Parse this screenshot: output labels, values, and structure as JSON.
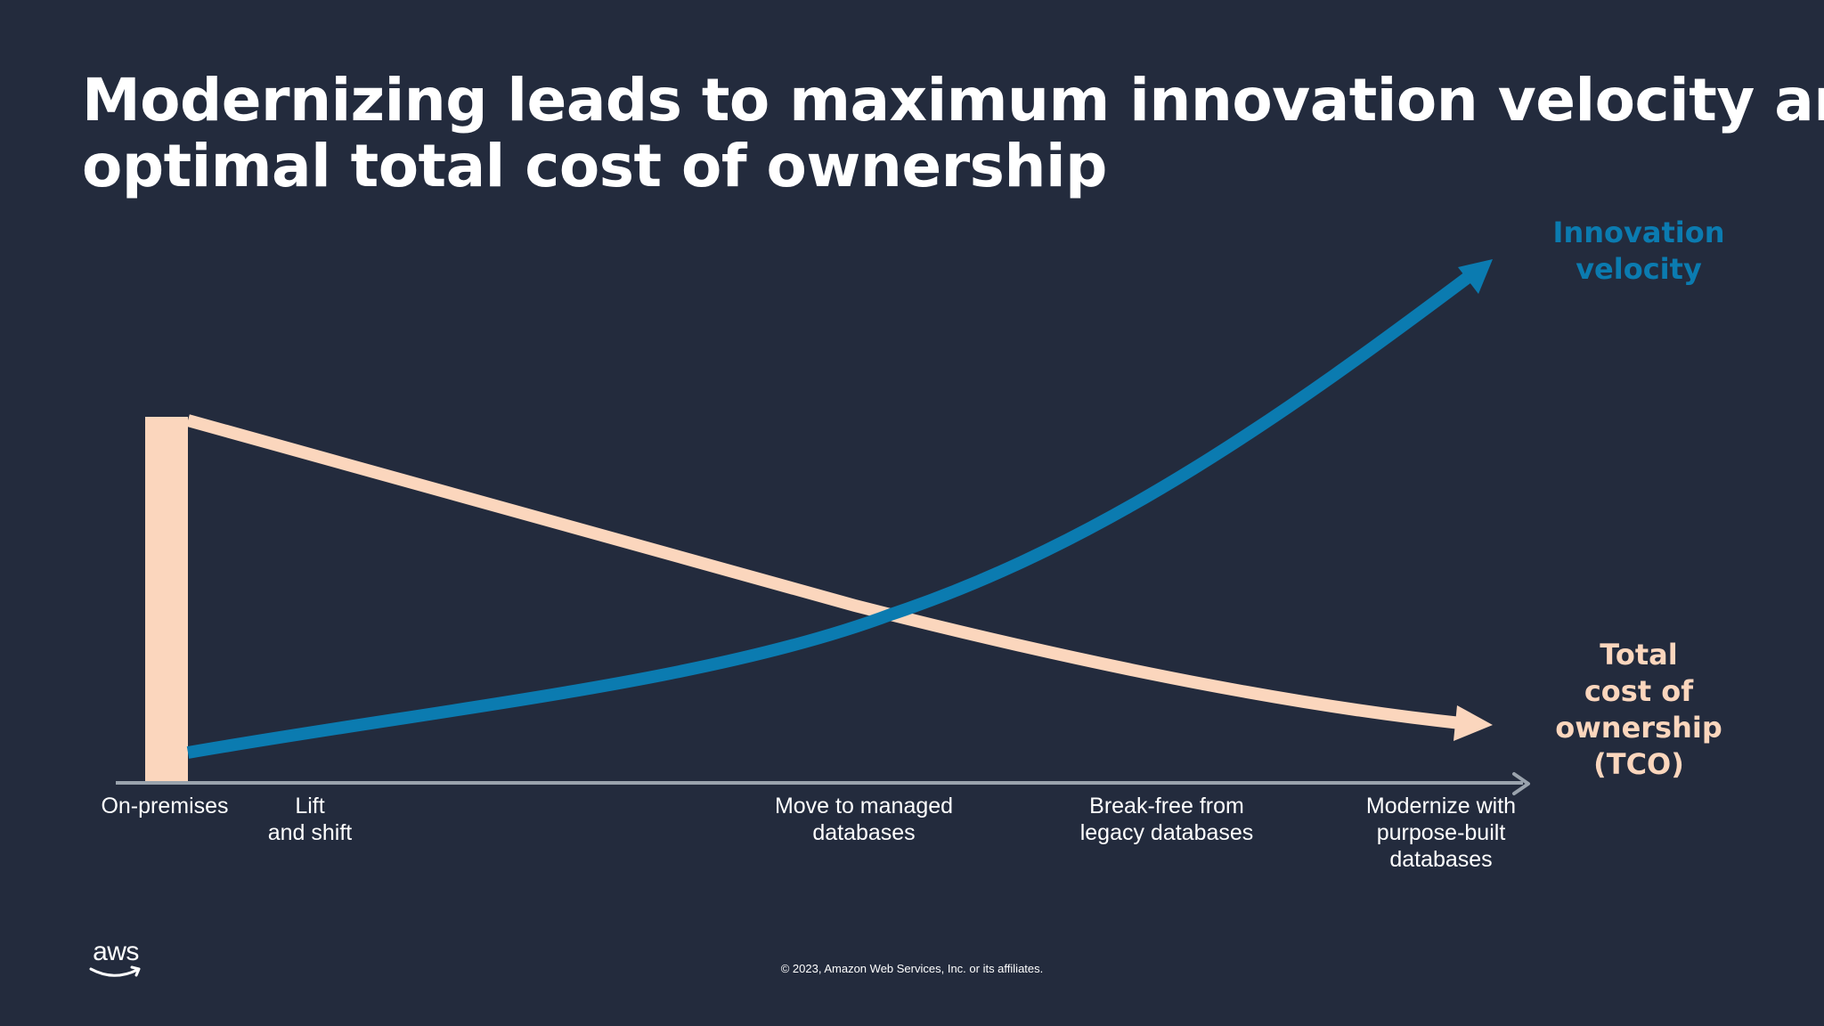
{
  "slide": {
    "title_line1": "Modernizing leads to maximum innovation velocity and",
    "title_line2": "optimal total cost of ownership",
    "copyright": "© 2023, Amazon Web Services, Inc. or its affiliates.",
    "logo_text": "aws"
  },
  "colors": {
    "background": "#232b3d",
    "innovation_velocity": "#0b7bb0",
    "tco": "#fbd6bd",
    "axis": "#9aa3ad"
  },
  "series": {
    "innovation_velocity": {
      "label_line1": "Innovation",
      "label_line2": "velocity",
      "trend": "increasing exponentially"
    },
    "tco": {
      "label_line1": "Total",
      "label_line2": "cost of",
      "label_line3": "ownership",
      "label_line4": "(TCO)",
      "trend": "decreasing steadily"
    }
  },
  "stages": [
    {
      "line1": "On-premises"
    },
    {
      "line1": "Lift",
      "line2": "and shift"
    },
    {
      "line1": "Move to managed",
      "line2": "databases"
    },
    {
      "line1": "Break-free from",
      "line2": "legacy databases"
    },
    {
      "line1": "Modernize with",
      "line2": "purpose-built",
      "line3": "databases"
    }
  ],
  "icons": {
    "logo": "aws-smile-icon",
    "axis_arrow": "arrow-right-icon",
    "velocity_arrow": "arrow-up-right-icon",
    "tco_arrow": "arrow-right-icon"
  }
}
